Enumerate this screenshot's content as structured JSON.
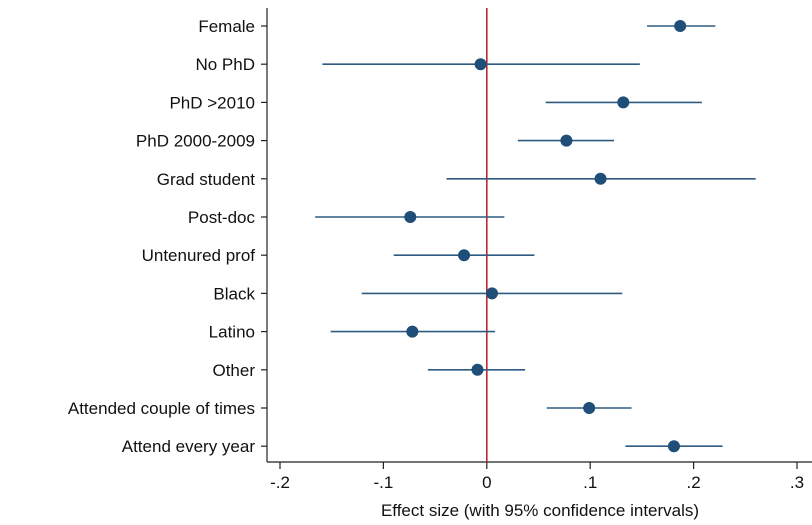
{
  "chart_data": {
    "type": "scatter",
    "style": "coefficient-plot",
    "xlabel": "Effect size (with 95% confidence intervals)",
    "xlim": [
      -0.2,
      0.3
    ],
    "xticks": [
      {
        "value": -0.2,
        "label": "-.2"
      },
      {
        "value": -0.1,
        "label": "-.1"
      },
      {
        "value": 0,
        "label": "0"
      },
      {
        "value": 0.1,
        "label": ".1"
      },
      {
        "value": 0.2,
        "label": ".2"
      },
      {
        "value": 0.3,
        "label": ".3"
      }
    ],
    "reference_line": 0,
    "grid": false,
    "colors": {
      "point": "#1f4e79",
      "ci": "#2f5b82",
      "reference": "#c0282d",
      "axis": "#222222"
    },
    "rows": [
      {
        "label": "Female",
        "estimate": 0.187,
        "ci_low": 0.155,
        "ci_high": 0.221
      },
      {
        "label": "No PhD",
        "estimate": -0.006,
        "ci_low": -0.159,
        "ci_high": 0.148
      },
      {
        "label": "PhD >2010",
        "estimate": 0.132,
        "ci_low": 0.057,
        "ci_high": 0.208
      },
      {
        "label": "PhD 2000-2009",
        "estimate": 0.077,
        "ci_low": 0.03,
        "ci_high": 0.123
      },
      {
        "label": "Grad student",
        "estimate": 0.11,
        "ci_low": -0.039,
        "ci_high": 0.26
      },
      {
        "label": "Post-doc",
        "estimate": -0.074,
        "ci_low": -0.166,
        "ci_high": 0.017
      },
      {
        "label": "Untenured prof",
        "estimate": -0.022,
        "ci_low": -0.09,
        "ci_high": 0.046
      },
      {
        "label": "Black",
        "estimate": 0.005,
        "ci_low": -0.121,
        "ci_high": 0.131
      },
      {
        "label": "Latino",
        "estimate": -0.072,
        "ci_low": -0.151,
        "ci_high": 0.008
      },
      {
        "label": "Other",
        "estimate": -0.009,
        "ci_low": -0.057,
        "ci_high": 0.037
      },
      {
        "label": "Attended couple of times",
        "estimate": 0.099,
        "ci_low": 0.058,
        "ci_high": 0.14
      },
      {
        "label": "Attend every year",
        "estimate": 0.181,
        "ci_low": 0.134,
        "ci_high": 0.228
      }
    ]
  }
}
